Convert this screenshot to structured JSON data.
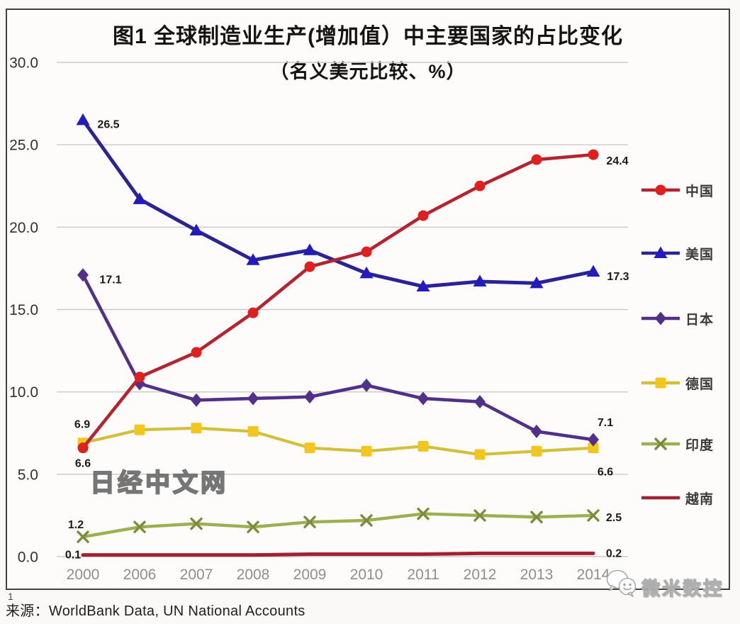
{
  "figure": {
    "footnote_marker": "1",
    "source": "来源：WorldBank Data, UN National Accounts"
  },
  "watermarks": {
    "center": "日经中文网",
    "corner": "微米数控",
    "corner_icon": "wechat-bubbles-icon"
  },
  "chart_data": {
    "type": "line",
    "title": "图1 全球制造业生产(增加值）中主要国家的占比变化",
    "subtitle": "（名义美元比较、%）",
    "unit": "%",
    "x_categories": [
      "2000",
      "2006",
      "2007",
      "2008",
      "2009",
      "2010",
      "2011",
      "2012",
      "2013",
      "2014"
    ],
    "ylim": [
      0,
      30
    ],
    "ytick_values": [
      30,
      25,
      20,
      15,
      10,
      5,
      0
    ],
    "ytick_labels": [
      "30.0",
      "25.0",
      "20.0",
      "15.0",
      "10.0",
      "5.0",
      "0.0"
    ],
    "grid": "horizontal",
    "legend_position": "right",
    "series": [
      {
        "id": "china",
        "name": "中国",
        "color": "#b5232e",
        "marker": "circle",
        "marker_color": "#e01f1f",
        "values": [
          6.6,
          10.9,
          12.4,
          14.8,
          17.6,
          18.5,
          20.7,
          22.5,
          24.1,
          24.4
        ],
        "first_label": "6.6",
        "last_label": "24.4"
      },
      {
        "id": "usa",
        "name": "美国",
        "color": "#2a2396",
        "marker": "triangle",
        "marker_color": "#221bbd",
        "values": [
          26.5,
          21.7,
          19.8,
          18.0,
          18.6,
          17.2,
          16.4,
          16.7,
          16.6,
          17.3
        ],
        "first_label": "26.5",
        "last_label": "17.3"
      },
      {
        "id": "japan",
        "name": "日本",
        "color": "#523089",
        "marker": "diamond",
        "marker_color": "#523089",
        "values": [
          17.1,
          10.5,
          9.5,
          9.6,
          9.7,
          10.4,
          9.6,
          9.4,
          7.6,
          7.1
        ],
        "first_label": "17.1",
        "last_label": "7.1"
      },
      {
        "id": "germany",
        "name": "德国",
        "color": "#d4bf3a",
        "marker": "square",
        "marker_color": "#f2c51f",
        "values": [
          6.9,
          7.7,
          7.8,
          7.6,
          6.6,
          6.4,
          6.7,
          6.2,
          6.4,
          6.6
        ],
        "first_label": "6.9",
        "last_label": "6.6"
      },
      {
        "id": "india",
        "name": "印度",
        "color": "#9bb050",
        "marker": "x",
        "marker_color": "#7c8b3c",
        "values": [
          1.2,
          1.8,
          2.0,
          1.8,
          2.1,
          2.2,
          2.6,
          2.5,
          2.4,
          2.5
        ],
        "first_label": "1.2",
        "last_label": "2.5"
      },
      {
        "id": "vietnam",
        "name": "越南",
        "color": "#a32133",
        "marker": "none",
        "marker_color": "#a32133",
        "values": [
          0.1,
          0.1,
          0.1,
          0.1,
          0.15,
          0.15,
          0.15,
          0.2,
          0.2,
          0.2
        ],
        "first_label": "0.1",
        "last_label": "0.2"
      }
    ]
  }
}
